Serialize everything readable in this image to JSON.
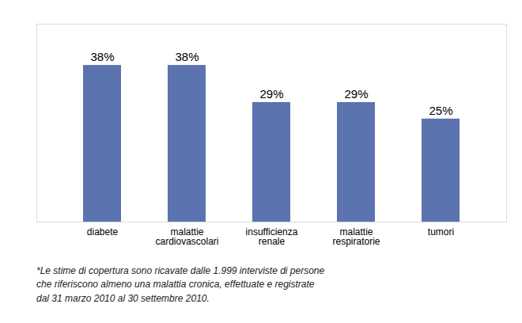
{
  "chart_data": {
    "type": "bar",
    "categories": [
      "diabete",
      "malattie\ncardiovascolari",
      "insufficienza\nrenale",
      "malattie\nrespiratorie",
      "tumori"
    ],
    "values": [
      38,
      38,
      29,
      29,
      25
    ],
    "value_labels": [
      "38%",
      "38%",
      "29%",
      "29%",
      "25%"
    ],
    "data_labels": true,
    "color": "#5b73ae",
    "ylim": [
      0,
      48
    ],
    "grid": false,
    "tick_labels": "x",
    "annotations": [
      "*Le stime di copertura sono ricavate dalle 1.999 interviste di persone",
      "che riferiscono almeno una malattia cronica, effettuate e registrate",
      "dal 31 marzo 2010 al 30 settembre 2010."
    ]
  }
}
